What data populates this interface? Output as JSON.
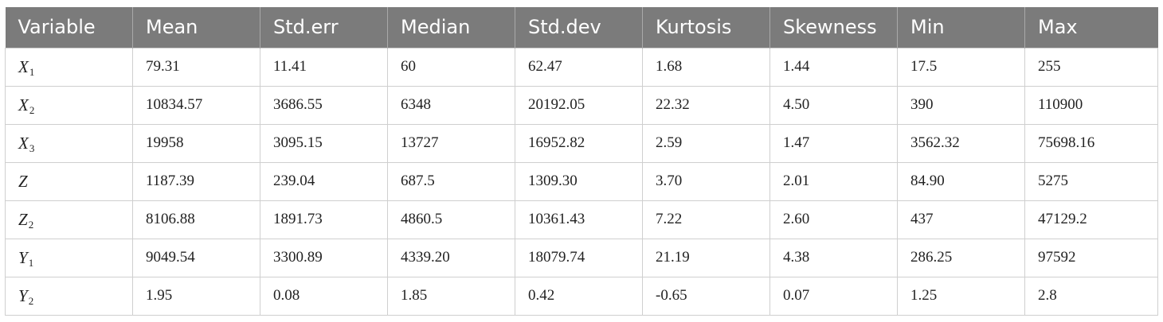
{
  "table": {
    "headers": [
      "Variable",
      "Mean",
      "Std.err",
      "Median",
      "Std.dev",
      "Kurtosis",
      "Skewness",
      "Min",
      "Max"
    ],
    "rows": [
      {
        "var": "X",
        "sub": "1",
        "values": [
          "79.31",
          "11.41",
          "60",
          "62.47",
          "1.68",
          "1.44",
          "17.5",
          "255"
        ]
      },
      {
        "var": "X",
        "sub": "2",
        "values": [
          "10834.57",
          "3686.55",
          "6348",
          "20192.05",
          "22.32",
          "4.50",
          "390",
          "110900"
        ]
      },
      {
        "var": "X",
        "sub": "3",
        "values": [
          "19958",
          "3095.15",
          "13727",
          "16952.82",
          "2.59",
          "1.47",
          "3562.32",
          "75698.16"
        ]
      },
      {
        "var": "Z",
        "sub": "",
        "values": [
          "1187.39",
          "239.04",
          "687.5",
          "1309.30",
          "3.70",
          "2.01",
          "84.90",
          "5275"
        ]
      },
      {
        "var": "Z",
        "sub": "2",
        "values": [
          "8106.88",
          "1891.73",
          "4860.5",
          "10361.43",
          "7.22",
          "2.60",
          "437",
          "47129.2"
        ]
      },
      {
        "var": "Y",
        "sub": "1",
        "values": [
          "9049.54",
          "3300.89",
          "4339.20",
          "18079.74",
          "21.19",
          "4.38",
          "286.25",
          "97592"
        ]
      },
      {
        "var": "Y",
        "sub": "2",
        "values": [
          "1.95",
          "0.08",
          "1.85",
          "0.42",
          "-0.65",
          "0.07",
          "1.25",
          "2.8"
        ]
      }
    ]
  }
}
